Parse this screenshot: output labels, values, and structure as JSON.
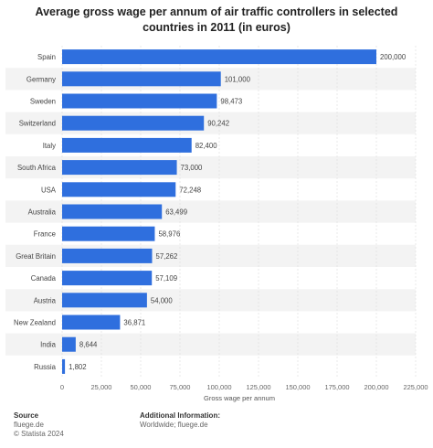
{
  "chart_data": {
    "type": "bar",
    "orientation": "horizontal",
    "title": "Average gross wage per annum of air traffic controllers in selected countries in 2011 (in euros)",
    "xlabel": "Gross wage per annum",
    "ylabel": "",
    "xlim": [
      0,
      225000
    ],
    "xticks": [
      0,
      25000,
      50000,
      75000,
      100000,
      125000,
      150000,
      175000,
      200000,
      225000
    ],
    "xtick_labels": [
      "0",
      "25,000",
      "50,000",
      "75,000",
      "100,000",
      "125,000",
      "150,000",
      "175,000",
      "200,000",
      "225,000"
    ],
    "grid": true,
    "categories": [
      "Spain",
      "Germany",
      "Sweden",
      "Switzerland",
      "Italy",
      "South Africa",
      "USA",
      "Australia",
      "France",
      "Great Britain",
      "Canada",
      "Austria",
      "New Zealand",
      "India",
      "Russia"
    ],
    "values": [
      200000,
      101000,
      98473,
      90242,
      82400,
      73000,
      72248,
      63499,
      58976,
      57262,
      57109,
      54000,
      36871,
      8644,
      1802
    ],
    "value_labels": [
      "200,000",
      "101,000",
      "98,473",
      "90,242",
      "82,400",
      "73,000",
      "72,248",
      "63,499",
      "58,976",
      "57,262",
      "57,109",
      "54,000",
      "36,871",
      "8,644",
      "1,802"
    ],
    "bar_color": "#2f6fde",
    "stripe_color": "#f3f3f3"
  },
  "footer": {
    "source_heading": "Source",
    "source_lines": [
      "fluege.de",
      "© Statista 2024"
    ],
    "info_heading": "Additional Information:",
    "info_lines": [
      "Worldwide; fluege.de"
    ]
  }
}
